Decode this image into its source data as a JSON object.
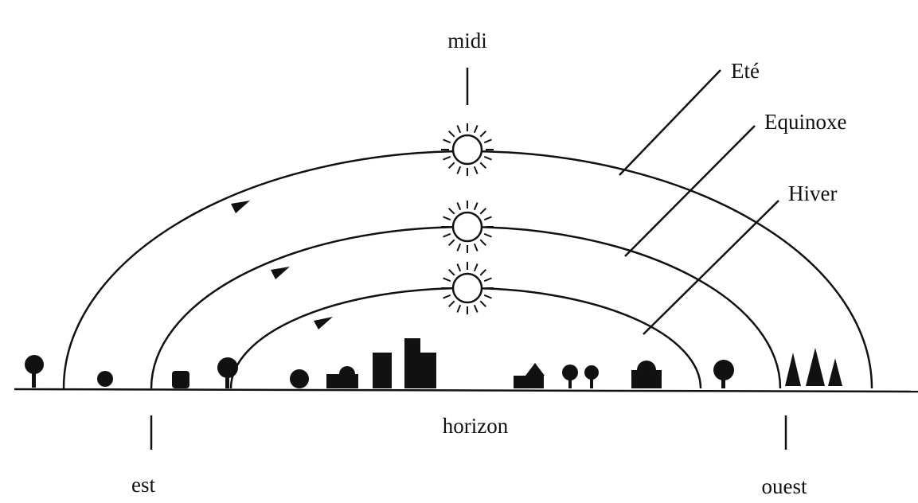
{
  "labels": {
    "noon": "midi",
    "summer": "Eté",
    "equinox": "Equinoxe",
    "winter": "Hiver",
    "horizon": "horizon",
    "east": "est",
    "west": "ouest"
  }
}
